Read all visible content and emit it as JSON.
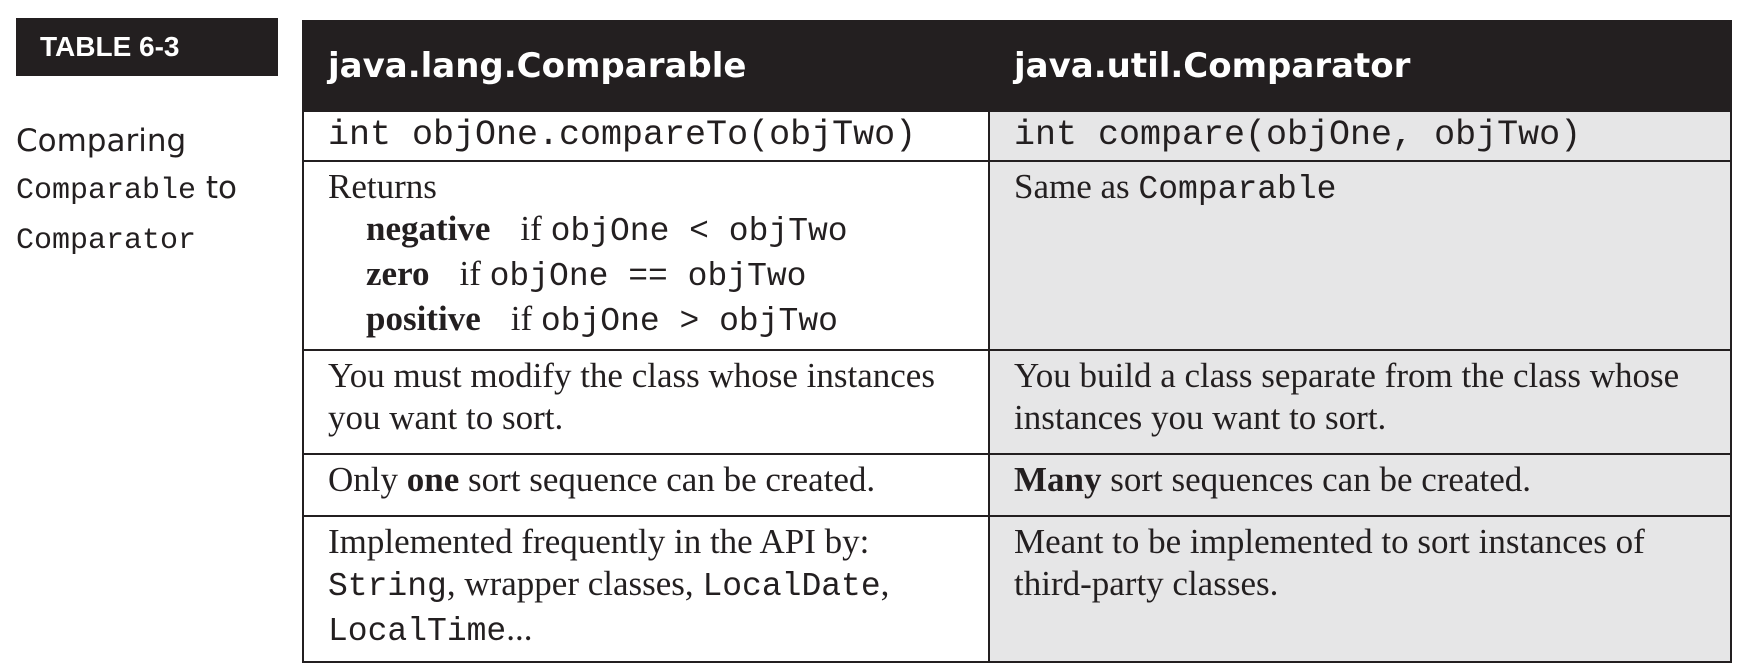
{
  "sidebar": {
    "badge": "TABLE 6-3",
    "caption_word1": "Comparing",
    "caption_code1": "Comparable",
    "caption_word2": "to",
    "caption_code2": "Comparator"
  },
  "table": {
    "headers": [
      "java.lang.Comparable",
      "java.util.Comparator"
    ],
    "signature": {
      "left": "int objOne.compareTo(objTwo)",
      "right": "int compare(objOne, objTwo)"
    },
    "returns": {
      "label": "Returns",
      "items": [
        {
          "term": "negative",
          "if": "if",
          "expr": "objOne < objTwo"
        },
        {
          "term": "zero",
          "if": "if",
          "expr": "objOne == objTwo"
        },
        {
          "term": "positive",
          "if": "if",
          "expr": "objOne > objTwo"
        }
      ],
      "right_text": "Same as",
      "right_code": "Comparable"
    },
    "modify": {
      "left": "You must modify the class whose instances you want to sort.",
      "right": "You build a class separate from the class whose instances you want to sort."
    },
    "sequence": {
      "left_pre": "Only",
      "left_bold": "one",
      "left_post": "sort sequence can be created.",
      "right_bold": "Many",
      "right_post": "sort sequences can be created."
    },
    "implemented": {
      "left_line1": "Implemented frequently in the API by:",
      "left_code1": "String",
      "left_text1": ", wrapper classes,",
      "left_code2": "LocalDate",
      "left_text2": ",",
      "left_code3": "LocalTime",
      "left_text3": "...",
      "right": "Meant to be implemented to sort instances of third-party classes."
    }
  }
}
